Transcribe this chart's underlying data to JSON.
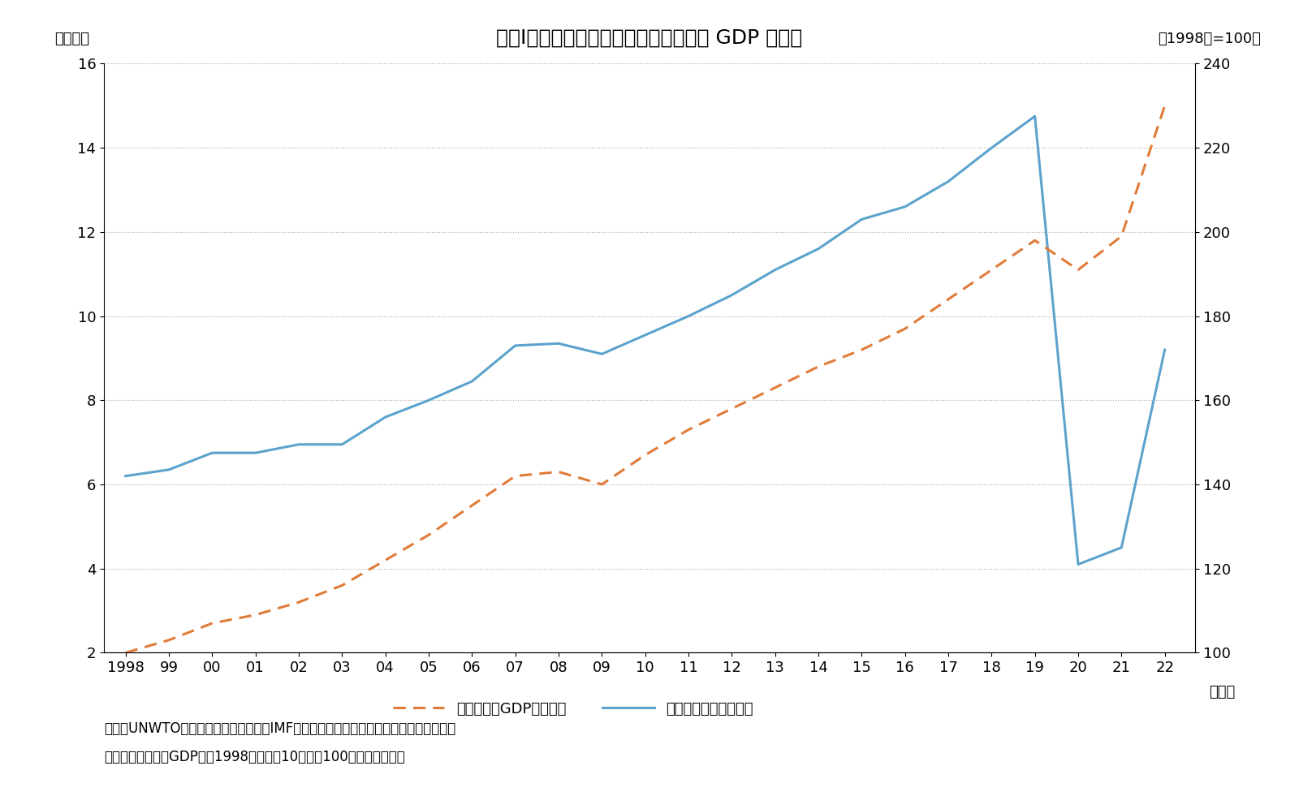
{
  "title": "図表Ⅰ－６　国際観光客数と世界の実質 GDP の推移",
  "years": [
    1998,
    1999,
    2000,
    2001,
    2002,
    2003,
    2004,
    2005,
    2006,
    2007,
    2008,
    2009,
    2010,
    2011,
    2012,
    2013,
    2014,
    2015,
    2016,
    2017,
    2018,
    2019,
    2020,
    2021,
    2022
  ],
  "tourists": [
    6.2,
    6.35,
    6.75,
    6.75,
    6.95,
    6.95,
    7.6,
    8.0,
    8.45,
    9.3,
    9.35,
    9.1,
    9.55,
    10.0,
    10.5,
    11.1,
    11.6,
    12.3,
    12.6,
    13.2,
    14.0,
    14.75,
    4.1,
    4.5,
    9.2
  ],
  "gdp": [
    100,
    103,
    107,
    109,
    112,
    116,
    122,
    128,
    135,
    142,
    143,
    140,
    147,
    153,
    158,
    163,
    168,
    172,
    177,
    184,
    191,
    198,
    191,
    199,
    230
  ],
  "tourist_color": "#5ba3cc",
  "gdp_color": "#e07b39",
  "left_ylabel": "（億人）",
  "right_ylabel": "（1998年=100）",
  "xlabel": "（年）",
  "left_ylim": [
    2,
    16
  ],
  "right_ylim": [
    100,
    240
  ],
  "left_yticks": [
    2,
    4,
    6,
    8,
    10,
    12,
    14,
    16
  ],
  "right_yticks": [
    100,
    120,
    140,
    160,
    180,
    200,
    220,
    240
  ],
  "legend_gdp": "世界の実質GDP（右軸）",
  "legend_tourist": "国際観光客数（左軸）",
  "note_line1": "資料：UNWTO（国連世界観光機関）、IMF（国際通貨基金）資料に基づき観光庁作成。",
  "note_line2": "注１：世界の実質GDPは、1998年（平成10年）を100として指数化。",
  "background_color": "#ffffff",
  "grid_color": "#aaaaaa",
  "title_fontsize": 18,
  "tick_fontsize": 13,
  "label_fontsize": 13,
  "note_fontsize": 12,
  "legend_fontsize": 13
}
